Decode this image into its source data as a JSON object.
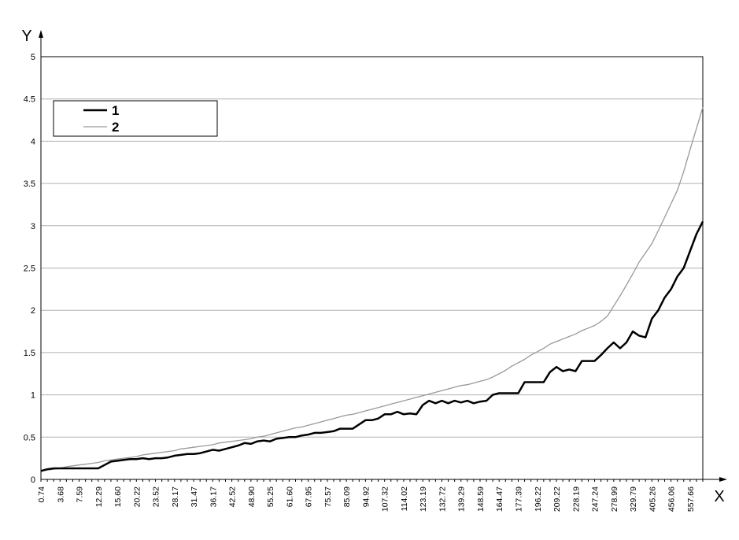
{
  "chart_data": {
    "type": "line",
    "x_label": "X",
    "y_label": "Y",
    "categories": [
      "0.74",
      null,
      null,
      "3.68",
      null,
      null,
      "7.59",
      null,
      null,
      "12.29",
      null,
      null,
      "15.60",
      null,
      null,
      "20.22",
      null,
      null,
      "23.52",
      null,
      null,
      "28.17",
      null,
      null,
      "31.47",
      null,
      null,
      "36.17",
      null,
      null,
      "42.52",
      null,
      null,
      "48.90",
      null,
      null,
      "55.25",
      null,
      null,
      "61.60",
      null,
      null,
      "67.95",
      null,
      null,
      "75.57",
      null,
      null,
      "85.09",
      null,
      null,
      "94.92",
      null,
      null,
      "107.32",
      null,
      null,
      "114.02",
      null,
      null,
      "123.19",
      null,
      null,
      "132.72",
      null,
      null,
      "139.29",
      null,
      null,
      "148.59",
      null,
      null,
      "164.47",
      null,
      null,
      "177.39",
      null,
      null,
      "196.22",
      null,
      null,
      "209.22",
      null,
      null,
      "228.19",
      null,
      null,
      "247.24",
      null,
      null,
      "278.99",
      null,
      null,
      "329.79",
      null,
      null,
      "405.26",
      null,
      null,
      "456.06",
      null,
      null,
      "557.66",
      null,
      null
    ],
    "series": [
      {
        "name": "1",
        "color": "#000000",
        "values": [
          0.1,
          0.12,
          0.13,
          0.13,
          0.13,
          0.13,
          0.13,
          0.13,
          0.13,
          0.13,
          0.17,
          0.21,
          0.22,
          0.23,
          0.24,
          0.24,
          0.25,
          0.24,
          0.25,
          0.25,
          0.26,
          0.28,
          0.29,
          0.3,
          0.3,
          0.31,
          0.33,
          0.35,
          0.34,
          0.36,
          0.38,
          0.4,
          0.43,
          0.42,
          0.45,
          0.46,
          0.45,
          0.48,
          0.49,
          0.5,
          0.5,
          0.52,
          0.53,
          0.55,
          0.55,
          0.56,
          0.57,
          0.6,
          0.6,
          0.6,
          0.65,
          0.7,
          0.7,
          0.72,
          0.77,
          0.77,
          0.8,
          0.77,
          0.78,
          0.77,
          0.88,
          0.93,
          0.9,
          0.93,
          0.9,
          0.93,
          0.91,
          0.93,
          0.9,
          0.92,
          0.93,
          1.0,
          1.02,
          1.02,
          1.02,
          1.02,
          1.15,
          1.15,
          1.15,
          1.15,
          1.27,
          1.33,
          1.28,
          1.3,
          1.28,
          1.4,
          1.4,
          1.4,
          1.47,
          1.55,
          1.62,
          1.55,
          1.62,
          1.75,
          1.7,
          1.68,
          1.9,
          2.0,
          2.15,
          2.25,
          2.4,
          2.5,
          2.7,
          2.9,
          3.05
        ]
      },
      {
        "name": "2",
        "color": "#999999",
        "values": [
          0.1,
          0.11,
          0.12,
          0.13,
          0.15,
          0.16,
          0.17,
          0.18,
          0.19,
          0.2,
          0.22,
          0.23,
          0.24,
          0.25,
          0.26,
          0.27,
          0.29,
          0.3,
          0.31,
          0.32,
          0.33,
          0.34,
          0.36,
          0.37,
          0.38,
          0.39,
          0.4,
          0.41,
          0.43,
          0.44,
          0.45,
          0.46,
          0.47,
          0.48,
          0.5,
          0.51,
          0.53,
          0.55,
          0.57,
          0.59,
          0.61,
          0.62,
          0.64,
          0.66,
          0.68,
          0.7,
          0.72,
          0.74,
          0.76,
          0.77,
          0.79,
          0.81,
          0.83,
          0.85,
          0.87,
          0.89,
          0.91,
          0.93,
          0.95,
          0.97,
          0.99,
          1.01,
          1.03,
          1.05,
          1.07,
          1.09,
          1.11,
          1.12,
          1.14,
          1.16,
          1.18,
          1.21,
          1.25,
          1.29,
          1.34,
          1.38,
          1.42,
          1.47,
          1.51,
          1.55,
          1.6,
          1.63,
          1.66,
          1.69,
          1.72,
          1.76,
          1.79,
          1.82,
          1.87,
          1.93,
          2.05,
          2.17,
          2.3,
          2.43,
          2.57,
          2.68,
          2.79,
          2.94,
          3.1,
          3.26,
          3.42,
          3.64,
          3.9,
          4.15,
          4.4
        ]
      }
    ],
    "ylim": [
      0,
      5
    ],
    "yticks": [
      0,
      0.5,
      1,
      1.5,
      2,
      2.5,
      3,
      3.5,
      4,
      4.5,
      5
    ],
    "grid": true
  }
}
